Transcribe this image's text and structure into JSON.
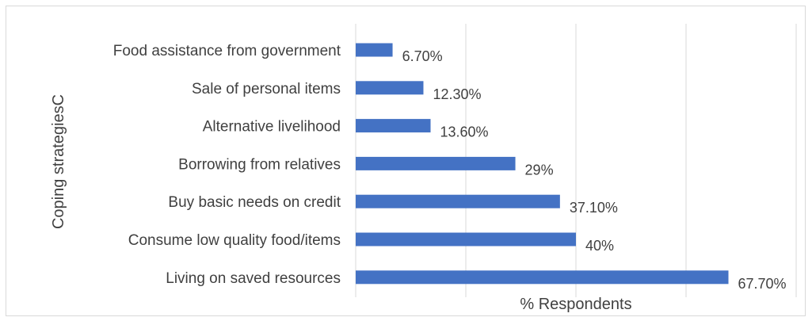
{
  "chart_data": {
    "type": "bar",
    "orientation": "horizontal",
    "categories": [
      "Food assistance from government",
      "Sale of personal items",
      "Alternative livelihood",
      "Borrowing from relatives ",
      "Buy basic needs on credit ",
      "Consume low quality food/items",
      "Living on saved resources"
    ],
    "values": [
      6.7,
      12.3,
      13.6,
      29,
      37.1,
      40,
      67.7
    ],
    "data_labels": [
      "6.70%",
      "12.30%",
      "13.60%",
      "29%",
      "37.10%",
      "40%",
      "67.70%"
    ],
    "xlabel": "% Respondents",
    "ylabel": "Coping  strategiesC",
    "xlim": [
      0,
      80
    ],
    "x_gridline_step": 20,
    "grid": true,
    "bar_color": "#4472c4"
  }
}
